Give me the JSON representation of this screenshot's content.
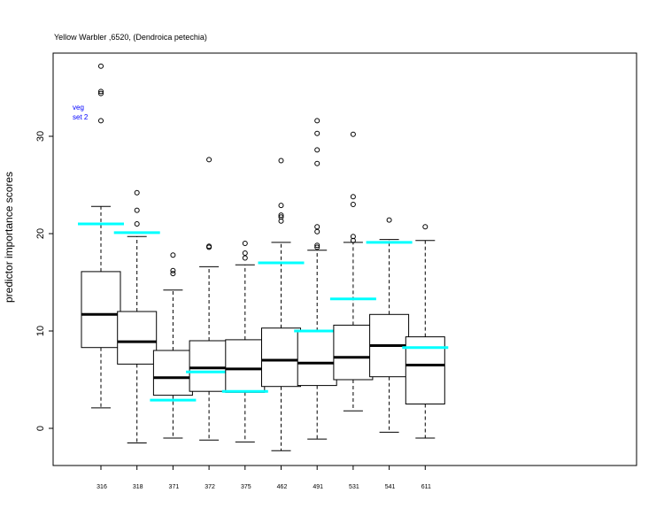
{
  "chart_data": {
    "type": "boxplot",
    "title": "Yellow Warbler ,6520, (Dendroica petechia)",
    "ylabel": "predictor importance scores",
    "xlabel": "",
    "ylim": [
      -3.8,
      38.8
    ],
    "yticks": [
      0,
      10,
      20,
      30
    ],
    "annotation": [
      "veg",
      "set 2"
    ],
    "colors": {
      "box": "#000000",
      "median": "#000000",
      "marker": "#00ffff",
      "annotation": "#0000ff"
    },
    "categories": [
      "316",
      "318",
      "371",
      "372",
      "375",
      "462",
      "491",
      "531",
      "541",
      "611"
    ],
    "boxes": [
      {
        "q1": 8.3,
        "median": 11.7,
        "q3": 16.1,
        "whisker_low": 2.1,
        "whisker_high": 22.8,
        "outliers": [
          31.6,
          34.4,
          34.6,
          37.2
        ],
        "marker": 21.0
      },
      {
        "q1": 6.6,
        "median": 8.9,
        "q3": 12.0,
        "whisker_low": -1.5,
        "whisker_high": 19.7,
        "outliers": [
          21.0,
          22.4,
          24.2
        ],
        "marker": 20.1
      },
      {
        "q1": 3.4,
        "median": 5.2,
        "q3": 8.0,
        "whisker_low": -1.0,
        "whisker_high": 14.2,
        "outliers": [
          15.9,
          16.2,
          17.8
        ],
        "marker": 2.9
      },
      {
        "q1": 3.8,
        "median": 6.2,
        "q3": 9.0,
        "whisker_low": -1.2,
        "whisker_high": 16.6,
        "outliers": [
          18.6,
          18.7,
          27.6
        ],
        "marker": 5.8
      },
      {
        "q1": 3.7,
        "median": 6.1,
        "q3": 9.1,
        "whisker_low": -1.4,
        "whisker_high": 16.8,
        "outliers": [
          17.5,
          18.0,
          19.0
        ],
        "marker": 3.8
      },
      {
        "q1": 4.3,
        "median": 7.0,
        "q3": 10.3,
        "whisker_low": -2.3,
        "whisker_high": 19.1,
        "outliers": [
          21.3,
          21.7,
          21.9,
          22.9,
          27.5
        ],
        "marker": 17.0
      },
      {
        "q1": 4.4,
        "median": 6.7,
        "q3": 10.0,
        "whisker_low": -1.1,
        "whisker_high": 18.3,
        "outliers": [
          18.6,
          18.8,
          20.2,
          20.7,
          27.2,
          28.6,
          30.3,
          31.6
        ],
        "marker": 10.0
      },
      {
        "q1": 5.0,
        "median": 7.3,
        "q3": 10.6,
        "whisker_low": 1.8,
        "whisker_high": 19.1,
        "outliers": [
          19.3,
          19.7,
          23.0,
          23.8,
          30.2
        ],
        "marker": 13.3
      },
      {
        "q1": 5.3,
        "median": 8.5,
        "q3": 11.7,
        "whisker_low": -0.4,
        "whisker_high": 19.4,
        "outliers": [
          21.4
        ],
        "marker": 19.1
      },
      {
        "q1": 2.5,
        "median": 6.5,
        "q3": 9.4,
        "whisker_low": -1.0,
        "whisker_high": 19.3,
        "outliers": [
          20.7
        ],
        "marker": 8.3
      }
    ]
  }
}
